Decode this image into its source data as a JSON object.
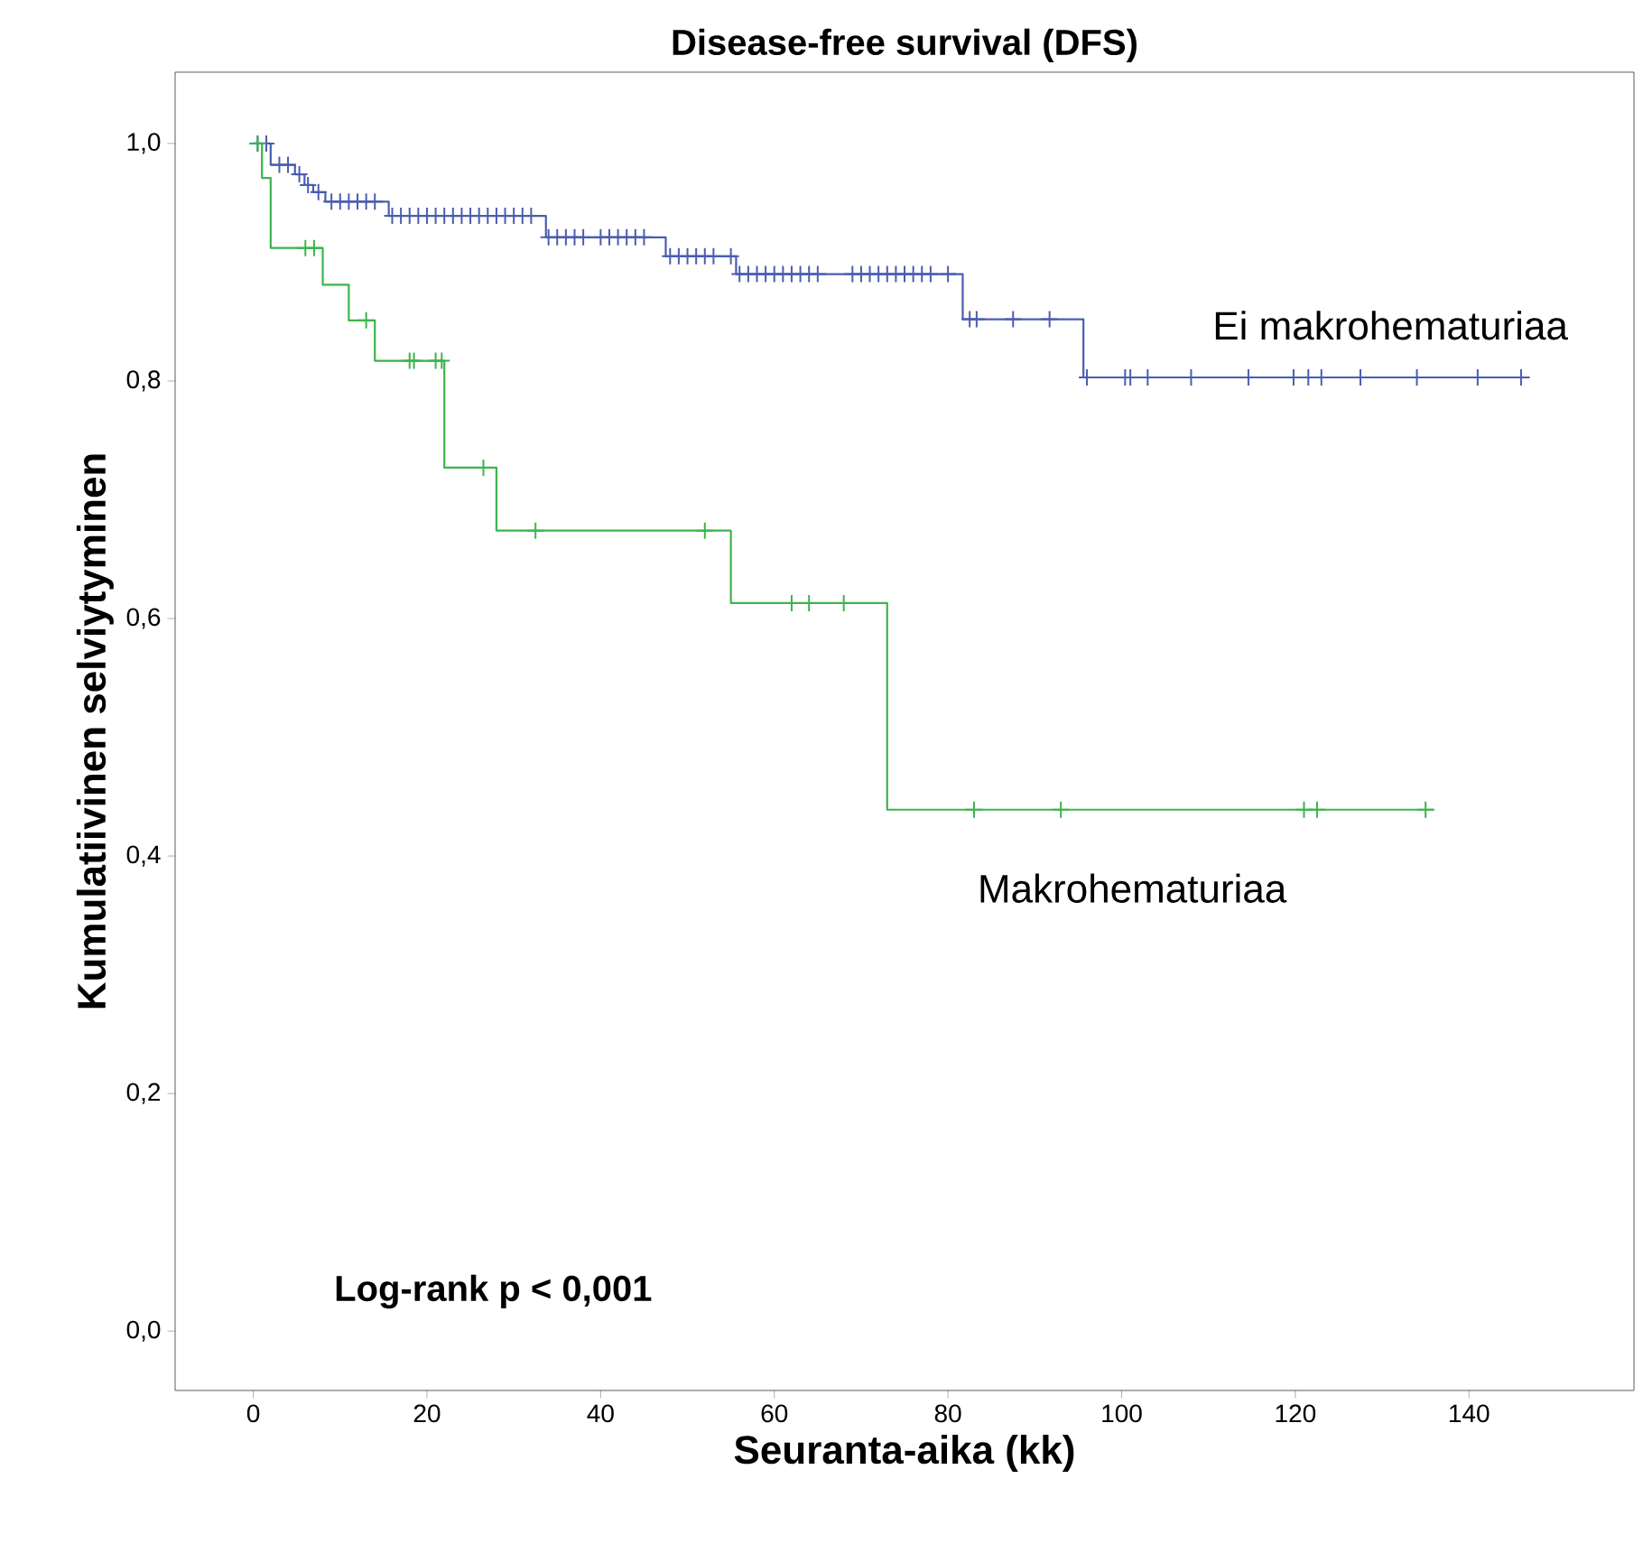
{
  "chart_data": {
    "type": "step",
    "title": "Disease-free survival (DFS)",
    "xlabel": "Seuranta-aika (kk)",
    "ylabel": "Kumulatiivinen selviytyminen",
    "xlim": [
      -9,
      159
    ],
    "ylim": [
      -0.05,
      1.06
    ],
    "xticks": [
      0,
      20,
      40,
      60,
      80,
      100,
      120,
      140
    ],
    "yticks": [
      {
        "value": 0,
        "label": "0,0"
      },
      {
        "value": 0.2,
        "label": "0,2"
      },
      {
        "value": 0.4,
        "label": "0,4"
      },
      {
        "value": 0.6,
        "label": "0,6"
      },
      {
        "value": 0.8,
        "label": "0,8"
      },
      {
        "value": 1.0,
        "label": "1,0"
      }
    ],
    "grid": false,
    "legend": false,
    "annotations": [
      "Log-rank p < 0,001"
    ],
    "series": [
      {
        "name": "Ei makrohematuriaa",
        "color": "#4a5db0",
        "marker": "none",
        "x": [
          0,
          2,
          4.8,
          5.9,
          6.9,
          8.3,
          15.6,
          33.7,
          47.5,
          55.6,
          81.7,
          95.6,
          147
        ],
        "values": [
          1,
          0.982,
          0.974,
          0.965,
          0.959,
          0.951,
          0.939,
          0.921,
          0.905,
          0.89,
          0.852,
          0.803,
          0.803
        ]
      },
      {
        "name": "Makrohematuriaa",
        "color": "#3cb44b",
        "marker": "none",
        "x": [
          0,
          1,
          2,
          8,
          11,
          14,
          22,
          28,
          55,
          73,
          136
        ],
        "values": [
          1,
          0.971,
          0.912,
          0.881,
          0.851,
          0.817,
          0.727,
          0.674,
          0.613,
          0.439,
          0.439
        ]
      },
      {
        "type": "scatter",
        "color": "#4a5db0",
        "marker": "cross",
        "x": [
          0.5,
          1.5,
          3,
          4,
          5.3,
          6.3,
          7.5,
          9,
          10,
          11,
          12,
          13,
          14,
          16,
          17,
          18,
          19,
          20,
          21,
          22,
          23,
          24,
          25,
          26,
          27,
          28,
          29,
          30,
          31,
          32,
          34,
          35,
          36,
          37,
          38,
          40,
          41,
          42,
          43,
          44,
          45,
          48,
          49,
          50,
          51,
          52,
          53,
          55,
          56,
          57,
          58,
          59,
          60,
          61,
          62,
          63,
          64,
          65,
          69,
          70,
          71,
          72,
          73,
          74,
          75,
          76,
          77,
          78,
          80,
          82.5,
          83.3,
          87.5,
          91.7,
          96,
          100.4,
          101,
          103,
          108,
          114.6,
          119.8,
          121.5,
          123,
          127.5,
          134,
          141,
          146
        ],
        "values": [
          1,
          1,
          0.982,
          0.982,
          0.974,
          0.965,
          0.959,
          0.951,
          0.951,
          0.951,
          0.951,
          0.951,
          0.951,
          0.939,
          0.939,
          0.939,
          0.939,
          0.939,
          0.939,
          0.939,
          0.939,
          0.939,
          0.939,
          0.939,
          0.939,
          0.939,
          0.939,
          0.939,
          0.939,
          0.939,
          0.921,
          0.921,
          0.921,
          0.921,
          0.921,
          0.921,
          0.921,
          0.921,
          0.921,
          0.921,
          0.921,
          0.905,
          0.905,
          0.905,
          0.905,
          0.905,
          0.905,
          0.905,
          0.89,
          0.89,
          0.89,
          0.89,
          0.89,
          0.89,
          0.89,
          0.89,
          0.89,
          0.89,
          0.89,
          0.89,
          0.89,
          0.89,
          0.89,
          0.89,
          0.89,
          0.89,
          0.89,
          0.89,
          0.89,
          0.852,
          0.852,
          0.852,
          0.852,
          0.803,
          0.803,
          0.803,
          0.803,
          0.803,
          0.803,
          0.803,
          0.803,
          0.803,
          0.803,
          0.803,
          0.803,
          0.803
        ]
      },
      {
        "type": "scatter",
        "color": "#3cb44b",
        "marker": "cross",
        "x": [
          0.5,
          6,
          7,
          13,
          18,
          18.5,
          21,
          21.7,
          26.5,
          32.5,
          52,
          62,
          64,
          68,
          83,
          93,
          121,
          122.5,
          135
        ],
        "values": [
          1,
          0.912,
          0.912,
          0.851,
          0.817,
          0.817,
          0.817,
          0.817,
          0.727,
          0.674,
          0.674,
          0.613,
          0.613,
          0.613,
          0.439,
          0.439,
          0.439,
          0.439,
          0.439
        ]
      }
    ]
  }
}
